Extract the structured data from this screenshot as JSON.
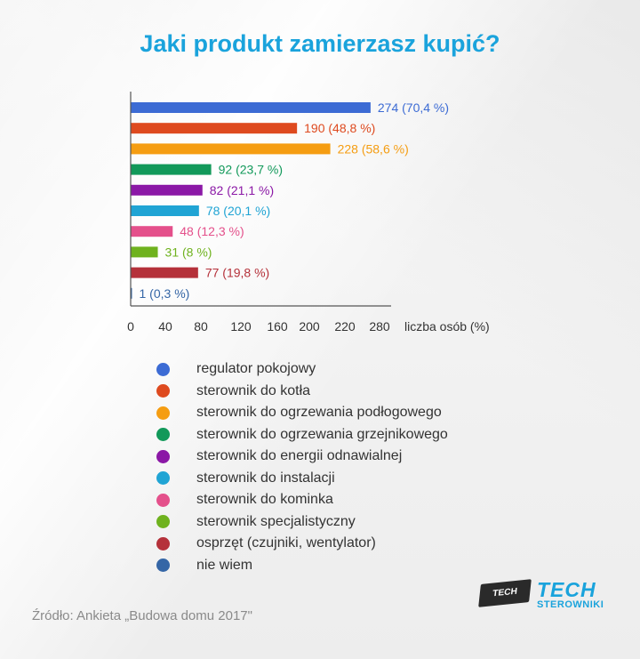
{
  "chart_data": {
    "type": "bar",
    "orientation": "horizontal",
    "title": "Jaki produkt zamierzasz kupić?",
    "xlabel": "liczba osób (%)",
    "xticks": [
      0,
      40,
      80,
      120,
      160,
      200,
      220,
      280
    ],
    "categories": [
      "regulator pokojowy",
      "sterownik do kotła",
      "sterownik do ogrzewania podłogowego",
      "sterownik do ogrzewania grzejnikowego",
      "sterownik do energii odnawialnej",
      "sterownik do instalacji",
      "sterownik do kominka",
      "sterownik specjalistyczny",
      "osprzęt (czujniki, wentylator)",
      "nie wiem"
    ],
    "values": [
      274,
      190,
      228,
      92,
      82,
      78,
      48,
      31,
      77,
      1
    ],
    "data_labels": [
      "274 (70,4 %)",
      "190 (48,8 %)",
      "228 (58,6 %)",
      "92 (23,7 %)",
      "82 (21,1 %)",
      "78 (20,1 %)",
      "48 (12,3 %)",
      "31 (8 %)",
      "77 (19,8 %)",
      "1 (0,3 %)"
    ],
    "colors": [
      "#3c6bd4",
      "#de4a1f",
      "#f59d12",
      "#12995a",
      "#8b18a6",
      "#20a4d4",
      "#e4508b",
      "#6fb21e",
      "#b5313a",
      "#3566a6"
    ],
    "legend_placement": "bottom",
    "grid": false
  },
  "source": "Źródło: Ankieta „Budowa domu 2017\"",
  "logo": {
    "chip_text": "TECH",
    "brand": "TECH",
    "brand_sub": "STEROWNIKI"
  }
}
